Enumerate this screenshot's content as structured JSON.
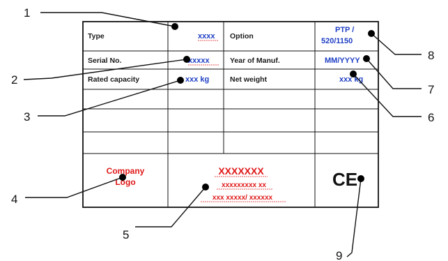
{
  "plate": {
    "type_label": "Type",
    "type_value": "xxxx",
    "option_label": "Option",
    "option_value_line1": "PTP /",
    "option_value_line2": "520/1150",
    "serial_label": "Serial No.",
    "serial_value": "xxxxx",
    "year_label": "Year of Manuf.",
    "year_value": "MM/YYYY",
    "capacity_label": "Rated capacity",
    "capacity_value": "xxx kg",
    "net_weight_label": "Net weight",
    "net_weight_value": "xxx kg",
    "company_line1": "Company",
    "company_line2": "Logo",
    "maker_line1": "XXXXXXX",
    "maker_line2": "xxxxxxxxx xx",
    "maker_line3": "xxx xxxxx/ xxxxxx",
    "ce_mark": "CE"
  },
  "callouts": [
    "1",
    "2",
    "3",
    "4",
    "5",
    "6",
    "7",
    "8",
    "9"
  ],
  "colors": {
    "blue_text": "#1f3fc4",
    "red_text": "#e01818",
    "lines": "#111111"
  }
}
